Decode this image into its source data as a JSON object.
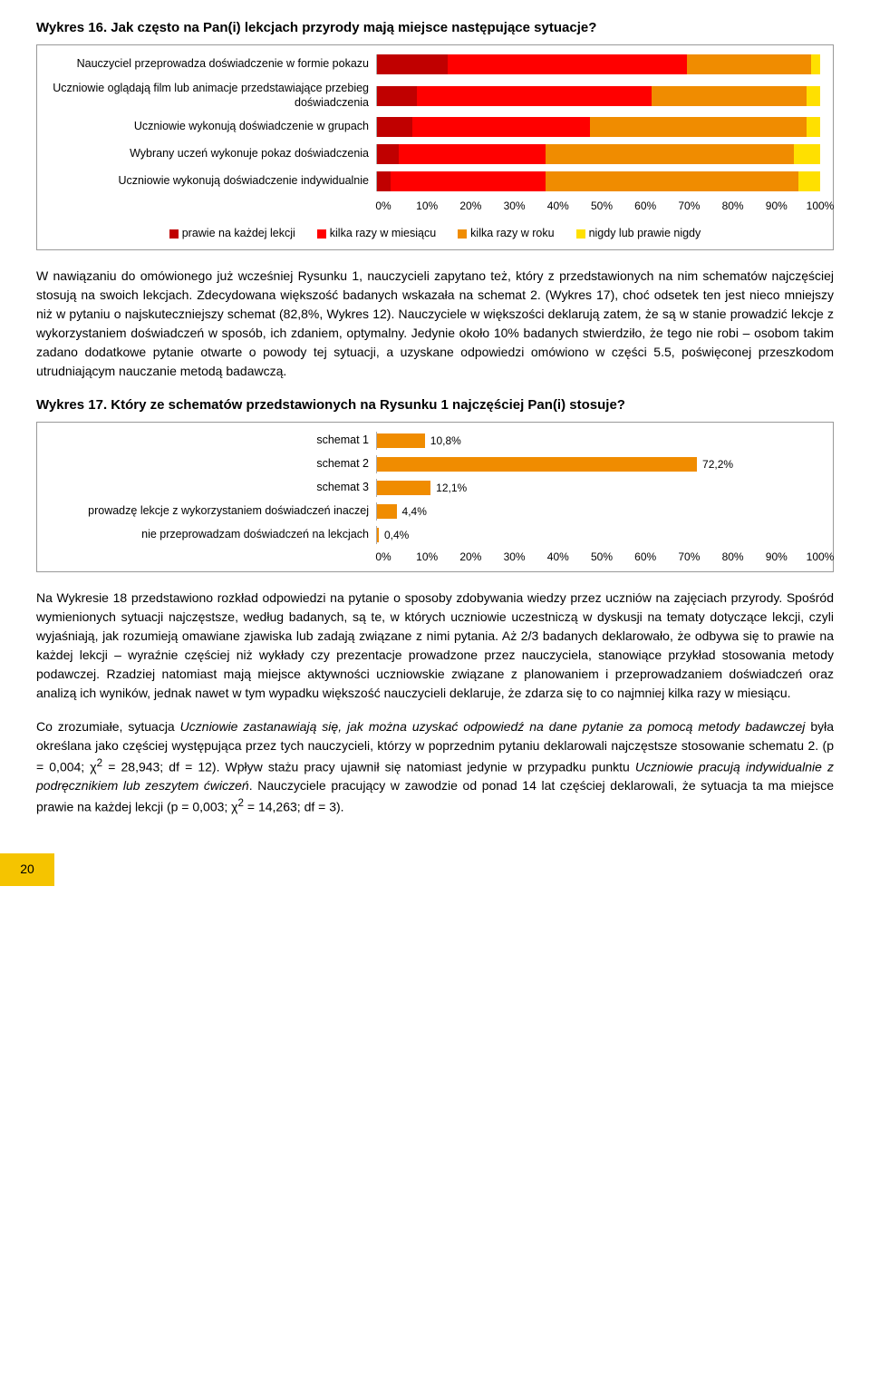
{
  "chart16": {
    "title": "Wykres 16. Jak często na Pan(i) lekcjach przyrody mają miejsce następujące sytuacje?",
    "rows": [
      {
        "label": "Nauczyciel przeprowadza doświadczenie w formie pokazu",
        "seg": [
          16,
          54,
          28,
          2
        ]
      },
      {
        "label": "Uczniowie oglądają film lub animacje przedstawiające przebieg doświadczenia",
        "seg": [
          9,
          53,
          35,
          3
        ]
      },
      {
        "label": "Uczniowie wykonują doświadczenie w grupach",
        "seg": [
          8,
          40,
          49,
          3
        ]
      },
      {
        "label": "Wybrany uczeń wykonuje pokaz doświadczenia",
        "seg": [
          5,
          33,
          56,
          6
        ]
      },
      {
        "label": "Uczniowie wykonują doświadczenie indywidualnie",
        "seg": [
          3,
          35,
          57,
          5
        ]
      }
    ],
    "xticks": [
      "0%",
      "10%",
      "20%",
      "30%",
      "40%",
      "50%",
      "60%",
      "70%",
      "80%",
      "90%",
      "100%"
    ],
    "legend": [
      {
        "label": "prawie na każdej lekcji",
        "color": "#c00000"
      },
      {
        "label": "kilka razy w miesiącu",
        "color": "#ff0000"
      },
      {
        "label": "kilka razy w roku",
        "color": "#f08c00"
      },
      {
        "label": "nigdy lub prawie nigdy",
        "color": "#ffe000"
      }
    ],
    "colors": [
      "#c00000",
      "#ff0000",
      "#f08c00",
      "#ffe000"
    ]
  },
  "para1": "W nawiązaniu do omówionego już wcześniej Rysunku 1, nauczycieli zapytano też, który z przedstawionych na nim schematów najczęściej stosują na swoich lekcjach. Zdecydowana większość badanych wskazała na schemat 2. (Wykres 17), choć odsetek ten jest nieco mniejszy niż w pytaniu o najskuteczniejszy schemat (82,8%, Wykres 12). Nauczyciele w większości deklarują zatem, że są w stanie prowadzić lekcje z wykorzystaniem doświadczeń w sposób, ich zdaniem, optymalny. Jedynie około 10% badanych stwierdziło, że tego nie robi – osobom takim zadano dodatkowe pytanie otwarte o powody tej sytuacji, a uzyskane odpowiedzi omówiono w części 5.5, poświęconej przeszkodom utrudniającym nauczanie metodą badawczą.",
  "chart17": {
    "title": "Wykres 17. Który ze schematów przedstawionych na Rysunku 1 najczęściej Pan(i) stosuje?",
    "rows": [
      {
        "label": "schemat 1",
        "value": 10.8,
        "disp": "10,8%"
      },
      {
        "label": "schemat 2",
        "value": 72.2,
        "disp": "72,2%"
      },
      {
        "label": "schemat 3",
        "value": 12.1,
        "disp": "12,1%"
      },
      {
        "label": "prowadzę lekcje z wykorzystaniem doświadczeń inaczej",
        "value": 4.4,
        "disp": "4,4%"
      },
      {
        "label": "nie przeprowadzam doświadczeń na lekcjach",
        "value": 0.4,
        "disp": "0,4%"
      }
    ],
    "bar_color": "#f08c00",
    "xticks": [
      "0%",
      "10%",
      "20%",
      "30%",
      "40%",
      "50%",
      "60%",
      "70%",
      "80%",
      "90%",
      "100%"
    ]
  },
  "para2": "Na Wykresie 18 przedstawiono rozkład odpowiedzi na pytanie o sposoby zdobywania wiedzy przez uczniów na zajęciach przyrody. Spośród wymienionych sytuacji najczęstsze, według badanych, są te, w których uczniowie uczestniczą w dyskusji na tematy dotyczące lekcji, czyli wyjaśniają, jak rozumieją omawiane zjawiska lub zadają związane z nimi pytania. Aż 2/3 badanych deklarowało, że odbywa się to prawie na każdej lekcji – wyraźnie częściej niż wykłady czy prezentacje prowadzone przez nauczyciela, stanowiące przykład stosowania metody podawczej. Rzadziej natomiast mają miejsce aktywności uczniowskie związane z planowaniem i przeprowadzaniem doświadczeń oraz analizą ich wyników, jednak nawet w tym wypadku większość nauczycieli deklaruje, że zdarza się to co najmniej kilka razy w miesiącu.",
  "para3_pre": "Co zrozumiałe, sytuacja ",
  "para3_em1": "Uczniowie zastanawiają się, jak można uzyskać odpowiedź na dane pytanie za pomocą metody badawczej",
  "para3_mid1": " była określana jako częściej występująca przez tych nauczycieli, którzy w poprzednim pytaniu deklarowali najczęstsze  stosowanie schematu 2. (p = 0,004; χ",
  "para3_sup1": "2",
  "para3_mid2": " = 28,943; df = 12).  Wpływ stażu pracy ujawnił się natomiast jedynie w przypadku punktu ",
  "para3_em2": "Uczniowie pracują indywidualnie z podręcznikiem lub zeszytem ćwiczeń",
  "para3_mid3": ". Nauczyciele pracujący w zawodzie od ponad 14 lat częściej deklarowali, że sytuacja ta ma miejsce prawie na każdej lekcji (p = 0,003; χ",
  "para3_sup2": "2",
  "para3_end": " = 14,263; df = 3).",
  "page_number": "20"
}
